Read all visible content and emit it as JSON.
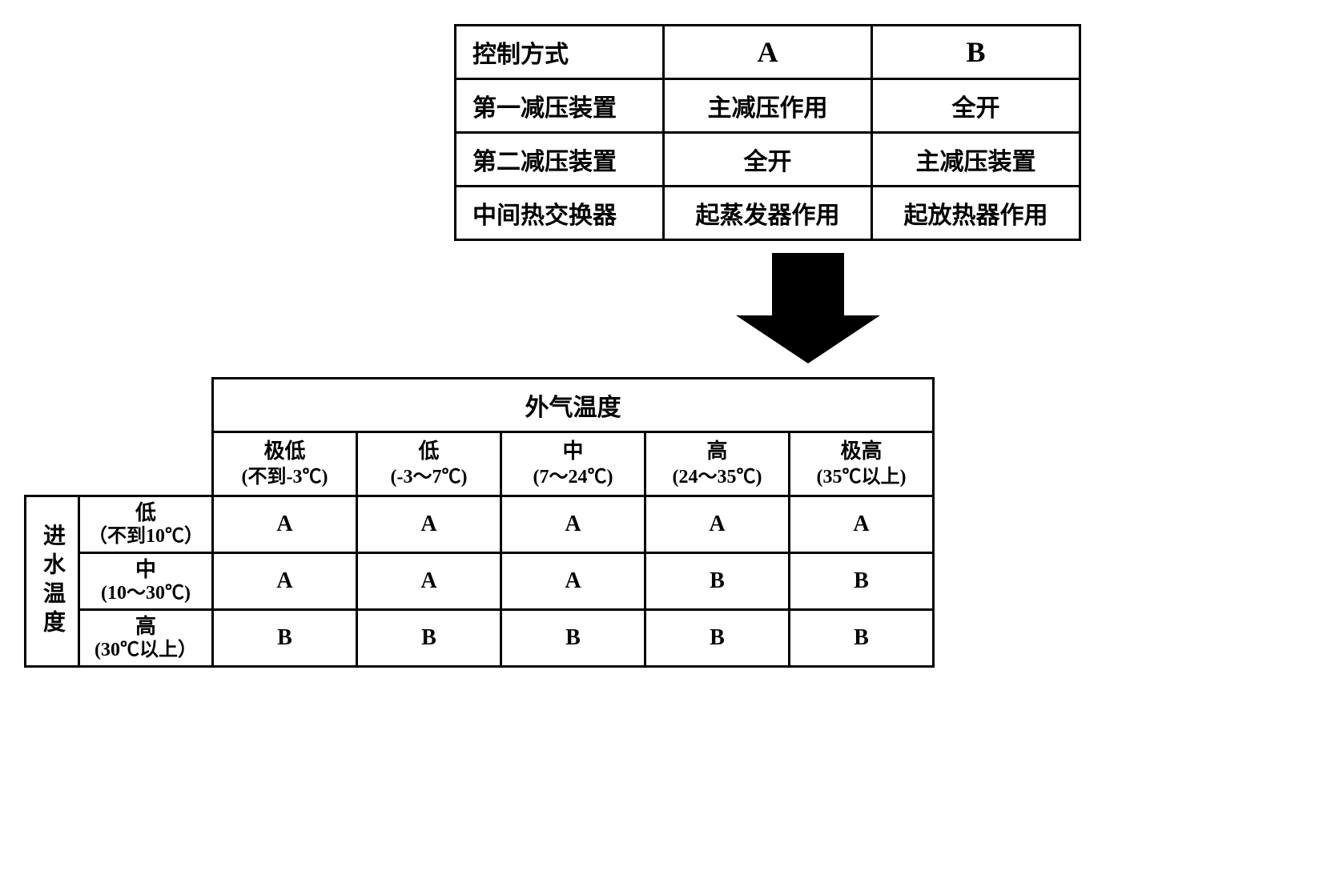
{
  "table1": {
    "rows": [
      {
        "label": "控制方式",
        "a": "A",
        "b": "B"
      },
      {
        "label": "第一减压装置",
        "a": "主减压作用",
        "b": "全开"
      },
      {
        "label": "第二减压装置",
        "a": "全开",
        "b": "主减压装置"
      },
      {
        "label": "中间热交换器",
        "a": "起蒸发器作用",
        "b": "起放热器作用"
      }
    ]
  },
  "table2": {
    "outer_header": "外气温度",
    "row_header": "进水温度",
    "columns": [
      {
        "label": "极低",
        "sub": "(不到-3℃)"
      },
      {
        "label": "低",
        "sub": "(-3～7℃)"
      },
      {
        "label": "中",
        "sub": "(7～24℃)"
      },
      {
        "label": "高",
        "sub": "(24～35℃)"
      },
      {
        "label": "极高",
        "sub": "(35℃以上)"
      }
    ],
    "rows": [
      {
        "label": "低",
        "sub": "（不到10℃）",
        "values": [
          "A",
          "A",
          "A",
          "A",
          "A"
        ]
      },
      {
        "label": "中",
        "sub": "(10～30℃)",
        "values": [
          "A",
          "A",
          "A",
          "B",
          "B"
        ]
      },
      {
        "label": "高",
        "sub": "(30℃以上）",
        "values": [
          "B",
          "B",
          "B",
          "B",
          "B"
        ]
      }
    ]
  },
  "style": {
    "border_color": "#000000",
    "background_color": "#ffffff",
    "arrow_color": "#000000",
    "table1_fontsize": 30,
    "data_cell_fontsize": 48,
    "range_label_fontsize": 26,
    "range_sub_fontsize": 24
  }
}
